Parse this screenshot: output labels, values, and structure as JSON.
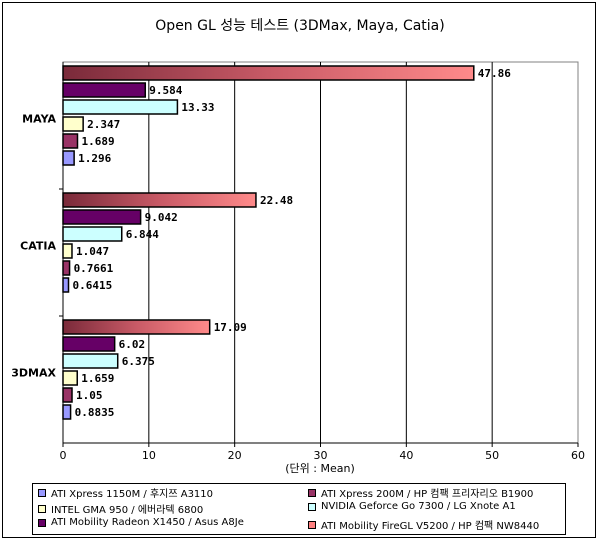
{
  "chart_data": {
    "type": "bar",
    "orientation": "horizontal",
    "title": "Open GL 성능 테스트 (3DMax, Maya, Catia)",
    "xlabel": "(단위 : Mean)",
    "ylabel": "",
    "xlim": [
      0,
      60
    ],
    "xticks": [
      "0",
      "10",
      "20",
      "30",
      "40",
      "50",
      "60"
    ],
    "grid": true,
    "legend_position": "bottom",
    "categories": [
      "MAYA",
      "CATIA",
      "3DMAX"
    ],
    "series": [
      {
        "name": "ATI Mobility FireGL V5200 / HP 컴팩 NW8440",
        "color": "#ff8080",
        "values": [
          47.86,
          22.48,
          17.09
        ],
        "labels": [
          "47.86",
          "22.48",
          "17.09"
        ]
      },
      {
        "name": "ATI Mobility Radeon X1450 / Asus A8Je",
        "color": "#660066",
        "values": [
          9.584,
          9.042,
          6.02
        ],
        "labels": [
          "9.584",
          "9.042",
          "6.02"
        ]
      },
      {
        "name": "NVIDIA Geforce Go 7300 / LG Xnote A1",
        "color": "#ccffff",
        "values": [
          13.33,
          6.844,
          6.375
        ],
        "labels": [
          "13.33",
          "6.844",
          "6.375"
        ]
      },
      {
        "name": "INTEL GMA 950 / 에버라텍 6800",
        "color": "#ffffcc",
        "values": [
          2.347,
          1.047,
          1.659
        ],
        "labels": [
          "2.347",
          "1.047",
          "1.659"
        ]
      },
      {
        "name": "ATI Xpress 200M / HP 컴팩 프리자리오 B1900",
        "color": "#993366",
        "values": [
          1.689,
          0.7661,
          1.05
        ],
        "labels": [
          "1.689",
          "0.7661",
          "1.05"
        ]
      },
      {
        "name": "ATI Xpress 1150M / 후지쯔 A3110",
        "color": "#9999ff",
        "values": [
          1.296,
          0.6415,
          0.8835
        ],
        "labels": [
          "1.296",
          "0.6415",
          "0.8835"
        ]
      }
    ],
    "legend": [
      {
        "name": "ATI Xpress 1150M / 후지쯔 A3110",
        "color": "#9999ff"
      },
      {
        "name": "ATI Xpress 200M / HP 컴팩 프리자리오 B1900",
        "color": "#993366"
      },
      {
        "name": "INTEL GMA 950 / 에버라텍 6800",
        "color": "#ffffcc"
      },
      {
        "name": "NVIDIA Geforce Go 7300 / LG Xnote A1",
        "color": "#ccffff"
      },
      {
        "name": "ATI Mobility Radeon X1450 / Asus A8Je",
        "color": "#660066"
      },
      {
        "name": "ATI Mobility FireGL V5200 / HP 컴팩 NW8440",
        "color": "#ff8080"
      }
    ]
  }
}
